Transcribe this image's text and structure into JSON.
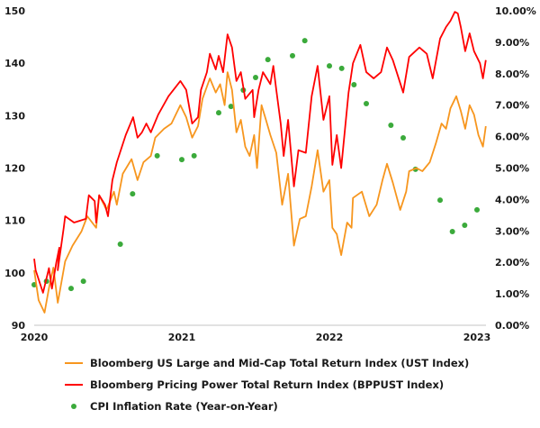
{
  "chart_data": {
    "type": "line",
    "title": "",
    "x_ticks": [
      "2020",
      "2021",
      "2022",
      "2023"
    ],
    "x_range": [
      2020,
      2023.06
    ],
    "y_left": {
      "range": [
        90,
        150
      ],
      "ticks": [
        "90",
        "100",
        "110",
        "120",
        "130",
        "140",
        "150"
      ]
    },
    "y_right": {
      "range": [
        0,
        10
      ],
      "ticks": [
        "0.00%",
        "1.00%",
        "2.00%",
        "3.00%",
        "4.00%",
        "5.00%",
        "6.00%",
        "7.00%",
        "8.00%",
        "9.00%",
        "10.00%"
      ]
    },
    "grid": false,
    "legend_position": "bottom",
    "series": [
      {
        "name": "Bloomberg US Large and Mid-Cap Total Return Index (UST Index)",
        "axis": "left",
        "color": "#F7961E",
        "kind": "line",
        "points": [
          [
            2020.0,
            100.5
          ],
          [
            2020.03,
            94.8
          ],
          [
            2020.07,
            92.4
          ],
          [
            2020.1,
            97.1
          ],
          [
            2020.13,
            101
          ],
          [
            2020.16,
            94.3
          ],
          [
            2020.21,
            102.2
          ],
          [
            2020.26,
            105.2
          ],
          [
            2020.32,
            107.9
          ],
          [
            2020.36,
            110.8
          ],
          [
            2020.42,
            108.6
          ],
          [
            2020.44,
            114.8
          ],
          [
            2020.49,
            112
          ],
          [
            2020.54,
            115.5
          ],
          [
            2020.56,
            113
          ],
          [
            2020.6,
            118.9
          ],
          [
            2020.66,
            121.7
          ],
          [
            2020.7,
            117.7
          ],
          [
            2020.74,
            121.1
          ],
          [
            2020.79,
            122.3
          ],
          [
            2020.82,
            125.8
          ],
          [
            2020.88,
            127.5
          ],
          [
            2020.93,
            128.5
          ],
          [
            2020.99,
            132
          ],
          [
            2021.03,
            129.7
          ],
          [
            2021.07,
            125.8
          ],
          [
            2021.11,
            128
          ],
          [
            2021.14,
            133.2
          ],
          [
            2021.19,
            137.1
          ],
          [
            2021.23,
            134.4
          ],
          [
            2021.26,
            136
          ],
          [
            2021.29,
            132
          ],
          [
            2021.31,
            138.3
          ],
          [
            2021.34,
            134.9
          ],
          [
            2021.37,
            126.8
          ],
          [
            2021.4,
            129.2
          ],
          [
            2021.43,
            124.1
          ],
          [
            2021.46,
            122.3
          ],
          [
            2021.49,
            126.3
          ],
          [
            2021.51,
            120
          ],
          [
            2021.54,
            132
          ],
          [
            2021.57,
            129.2
          ],
          [
            2021.6,
            126.3
          ],
          [
            2021.64,
            122.9
          ],
          [
            2021.68,
            113
          ],
          [
            2021.72,
            118.9
          ],
          [
            2021.76,
            105.2
          ],
          [
            2021.8,
            110.3
          ],
          [
            2021.84,
            110.8
          ],
          [
            2021.88,
            116.5
          ],
          [
            2021.92,
            123.4
          ],
          [
            2021.96,
            115.5
          ],
          [
            2022.0,
            117.7
          ],
          [
            2022.02,
            108.6
          ],
          [
            2022.05,
            107.4
          ],
          [
            2022.08,
            103.4
          ],
          [
            2022.12,
            109.6
          ],
          [
            2022.15,
            108.6
          ],
          [
            2022.16,
            114.3
          ],
          [
            2022.22,
            115.5
          ],
          [
            2022.27,
            110.8
          ],
          [
            2022.32,
            113
          ],
          [
            2022.36,
            117.7
          ],
          [
            2022.39,
            120.8
          ],
          [
            2022.43,
            117.2
          ],
          [
            2022.48,
            112
          ],
          [
            2022.52,
            115.5
          ],
          [
            2022.54,
            119.4
          ],
          [
            2022.59,
            120
          ],
          [
            2022.63,
            119.4
          ],
          [
            2022.68,
            121.1
          ],
          [
            2022.72,
            124.6
          ],
          [
            2022.76,
            128.5
          ],
          [
            2022.79,
            127.5
          ],
          [
            2022.82,
            131.4
          ],
          [
            2022.86,
            133.7
          ],
          [
            2022.89,
            130.9
          ],
          [
            2022.92,
            127.5
          ],
          [
            2022.95,
            132
          ],
          [
            2022.98,
            130.2
          ],
          [
            2023.01,
            126.3
          ],
          [
            2023.04,
            124.1
          ],
          [
            2023.06,
            128
          ]
        ]
      },
      {
        "name": "Bloomberg Pricing Power Total Return Index (BPPUST Index)",
        "axis": "left",
        "color": "#FF0000",
        "kind": "line",
        "points": [
          [
            2020.0,
            102.7
          ],
          [
            2020.01,
            100.5
          ],
          [
            2020.06,
            96.2
          ],
          [
            2020.1,
            100.9
          ],
          [
            2020.12,
            97
          ],
          [
            2020.15,
            102
          ],
          [
            2020.17,
            104.8
          ],
          [
            2020.16,
            100.5
          ],
          [
            2020.2,
            108.6
          ],
          [
            2020.21,
            110.8
          ],
          [
            2020.27,
            109.6
          ],
          [
            2020.35,
            110.3
          ],
          [
            2020.37,
            114.8
          ],
          [
            2020.41,
            113.7
          ],
          [
            2020.42,
            109.6
          ],
          [
            2020.44,
            114.8
          ],
          [
            2020.48,
            113
          ],
          [
            2020.5,
            110.8
          ],
          [
            2020.53,
            117.7
          ],
          [
            2020.56,
            121.1
          ],
          [
            2020.62,
            126.3
          ],
          [
            2020.67,
            129.7
          ],
          [
            2020.7,
            125.8
          ],
          [
            2020.73,
            126.8
          ],
          [
            2020.76,
            128.5
          ],
          [
            2020.79,
            126.8
          ],
          [
            2020.84,
            130.2
          ],
          [
            2020.91,
            133.7
          ],
          [
            2020.99,
            136.6
          ],
          [
            2021.03,
            134.9
          ],
          [
            2021.07,
            128.5
          ],
          [
            2021.11,
            129.7
          ],
          [
            2021.13,
            134.9
          ],
          [
            2021.17,
            138.3
          ],
          [
            2021.19,
            141.8
          ],
          [
            2021.23,
            138.8
          ],
          [
            2021.25,
            141.4
          ],
          [
            2021.28,
            138.3
          ],
          [
            2021.31,
            145.5
          ],
          [
            2021.34,
            143
          ],
          [
            2021.37,
            136.6
          ],
          [
            2021.4,
            138.3
          ],
          [
            2021.43,
            133.2
          ],
          [
            2021.48,
            134.9
          ],
          [
            2021.49,
            129.7
          ],
          [
            2021.52,
            134.9
          ],
          [
            2021.55,
            138.3
          ],
          [
            2021.6,
            136
          ],
          [
            2021.62,
            139.5
          ],
          [
            2021.64,
            134.9
          ],
          [
            2021.67,
            128.5
          ],
          [
            2021.69,
            122.3
          ],
          [
            2021.72,
            129.2
          ],
          [
            2021.76,
            116.5
          ],
          [
            2021.79,
            123.4
          ],
          [
            2021.84,
            122.9
          ],
          [
            2021.88,
            133.7
          ],
          [
            2021.92,
            139.5
          ],
          [
            2021.96,
            129.2
          ],
          [
            2022.0,
            133.7
          ],
          [
            2022.02,
            120.6
          ],
          [
            2022.05,
            126.3
          ],
          [
            2022.08,
            120
          ],
          [
            2022.13,
            134.4
          ],
          [
            2022.16,
            140
          ],
          [
            2022.21,
            143.5
          ],
          [
            2022.25,
            138.3
          ],
          [
            2022.3,
            137.1
          ],
          [
            2022.35,
            138.3
          ],
          [
            2022.39,
            143
          ],
          [
            2022.43,
            140.6
          ],
          [
            2022.5,
            134.4
          ],
          [
            2022.54,
            141.2
          ],
          [
            2022.61,
            143
          ],
          [
            2022.66,
            141.8
          ],
          [
            2022.7,
            137.1
          ],
          [
            2022.75,
            144.7
          ],
          [
            2022.79,
            146.9
          ],
          [
            2022.82,
            148.1
          ],
          [
            2022.85,
            149.8
          ],
          [
            2022.87,
            149.5
          ],
          [
            2022.89,
            146.9
          ],
          [
            2022.92,
            142.3
          ],
          [
            2022.95,
            145.7
          ],
          [
            2022.98,
            142.3
          ],
          [
            2023.02,
            140
          ],
          [
            2023.04,
            137.1
          ],
          [
            2023.06,
            140.6
          ]
        ]
      },
      {
        "name": "CPI Inflation Rate (Year-on-Year)",
        "axis": "right",
        "color": "#3BAA3B",
        "kind": "scatter",
        "points": [
          [
            "2020-01",
            1.29
          ],
          [
            "2020-02",
            1.4
          ],
          [
            "2020-04",
            1.17
          ],
          [
            "2020-05",
            1.4
          ],
          [
            "2020-08",
            2.58
          ],
          [
            "2020-09",
            4.18
          ],
          [
            "2020-11",
            5.39
          ],
          [
            "2021-01",
            5.27
          ],
          [
            "2021-02",
            5.39
          ],
          [
            "2021-04",
            6.76
          ],
          [
            "2021-05",
            6.96
          ],
          [
            "2021-06",
            7.48
          ],
          [
            "2021-07",
            7.88
          ],
          [
            "2021-08",
            8.45
          ],
          [
            "2021-10",
            8.57
          ],
          [
            "2021-11",
            9.05
          ],
          [
            "2022-01",
            8.25
          ],
          [
            "2022-02",
            8.17
          ],
          [
            "2022-03",
            7.65
          ],
          [
            "2022-04",
            7.05
          ],
          [
            "2022-06",
            6.36
          ],
          [
            "2022-07",
            5.96
          ],
          [
            "2022-08",
            4.96
          ],
          [
            "2022-10",
            3.98
          ],
          [
            "2022-11",
            2.98
          ],
          [
            "2022-12",
            3.18
          ],
          [
            "2023-01",
            3.67
          ]
        ]
      }
    ]
  }
}
